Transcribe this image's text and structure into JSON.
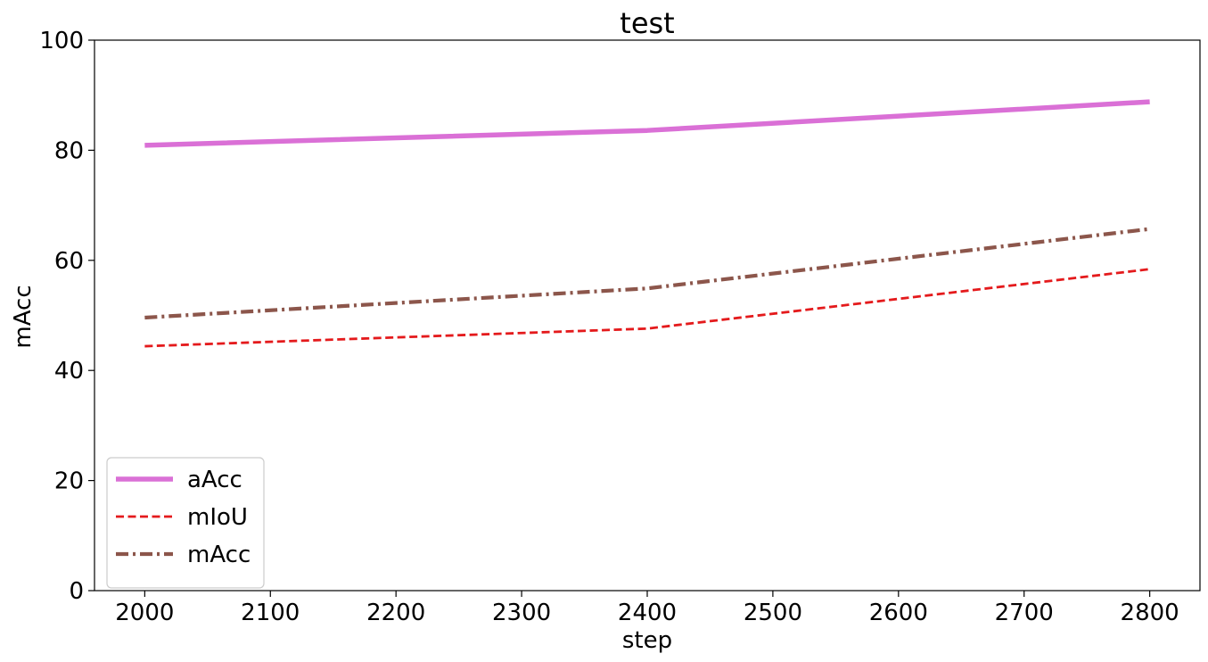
{
  "chart_data": {
    "type": "line",
    "title": "test",
    "xlabel": "step",
    "ylabel": "mAcc",
    "x": [
      2000,
      2400,
      2800
    ],
    "xlim": [
      1960,
      2840
    ],
    "ylim": [
      0,
      100
    ],
    "xticks": [
      2000,
      2100,
      2200,
      2300,
      2400,
      2500,
      2600,
      2700,
      2800
    ],
    "yticks": [
      0,
      20,
      40,
      60,
      80,
      100
    ],
    "grid": false,
    "legend_position": "lower-left",
    "series": [
      {
        "name": "aAcc",
        "values": [
          80.9,
          83.6,
          88.8
        ],
        "color": "#da70d6",
        "style": "solid"
      },
      {
        "name": "mIoU",
        "values": [
          44.4,
          47.6,
          58.4
        ],
        "color": "#e41a1c",
        "style": "dashed"
      },
      {
        "name": "mAcc",
        "values": [
          49.6,
          54.9,
          65.7
        ],
        "color": "#8c564b",
        "style": "dashdot"
      }
    ]
  }
}
